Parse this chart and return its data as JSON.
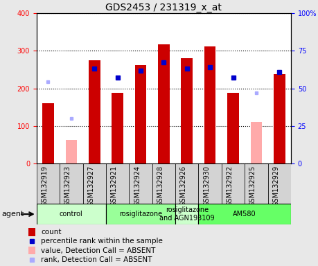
{
  "title": "GDS2453 / 231319_x_at",
  "samples": [
    "GSM132919",
    "GSM132923",
    "GSM132927",
    "GSM132921",
    "GSM132924",
    "GSM132928",
    "GSM132926",
    "GSM132930",
    "GSM132922",
    "GSM132925",
    "GSM132929"
  ],
  "count_values": [
    160,
    null,
    275,
    188,
    263,
    317,
    280,
    312,
    188,
    null,
    238
  ],
  "count_absent": [
    null,
    63,
    null,
    null,
    null,
    null,
    null,
    null,
    null,
    110,
    null
  ],
  "percentile_present": [
    null,
    null,
    253,
    228,
    248,
    270,
    253,
    257,
    228,
    null,
    243
  ],
  "percentile_absent": [
    218,
    120,
    null,
    null,
    null,
    null,
    null,
    null,
    null,
    188,
    null
  ],
  "groups": [
    {
      "label": "control",
      "start": 0,
      "end": 3,
      "color": "#ccffcc"
    },
    {
      "label": "rosiglitazone",
      "start": 3,
      "end": 6,
      "color": "#99ff99"
    },
    {
      "label": "rosiglitazone\nand AGN193109",
      "start": 6,
      "end": 7,
      "color": "#ccffcc"
    },
    {
      "label": "AM580",
      "start": 7,
      "end": 11,
      "color": "#66ff66"
    }
  ],
  "ylim_left": [
    0,
    400
  ],
  "ylim_right": [
    0,
    100
  ],
  "bar_color_present": "#cc0000",
  "bar_color_absent": "#ffaaaa",
  "dot_color_present": "#0000cc",
  "dot_color_absent": "#aaaaff",
  "bar_width": 0.5,
  "background_color": "#e8e8e8",
  "plot_bg": "#ffffff",
  "gridcolor": "black",
  "title_fontsize": 10,
  "tick_fontsize": 7,
  "label_fontsize": 8,
  "legend_fontsize": 7.5
}
